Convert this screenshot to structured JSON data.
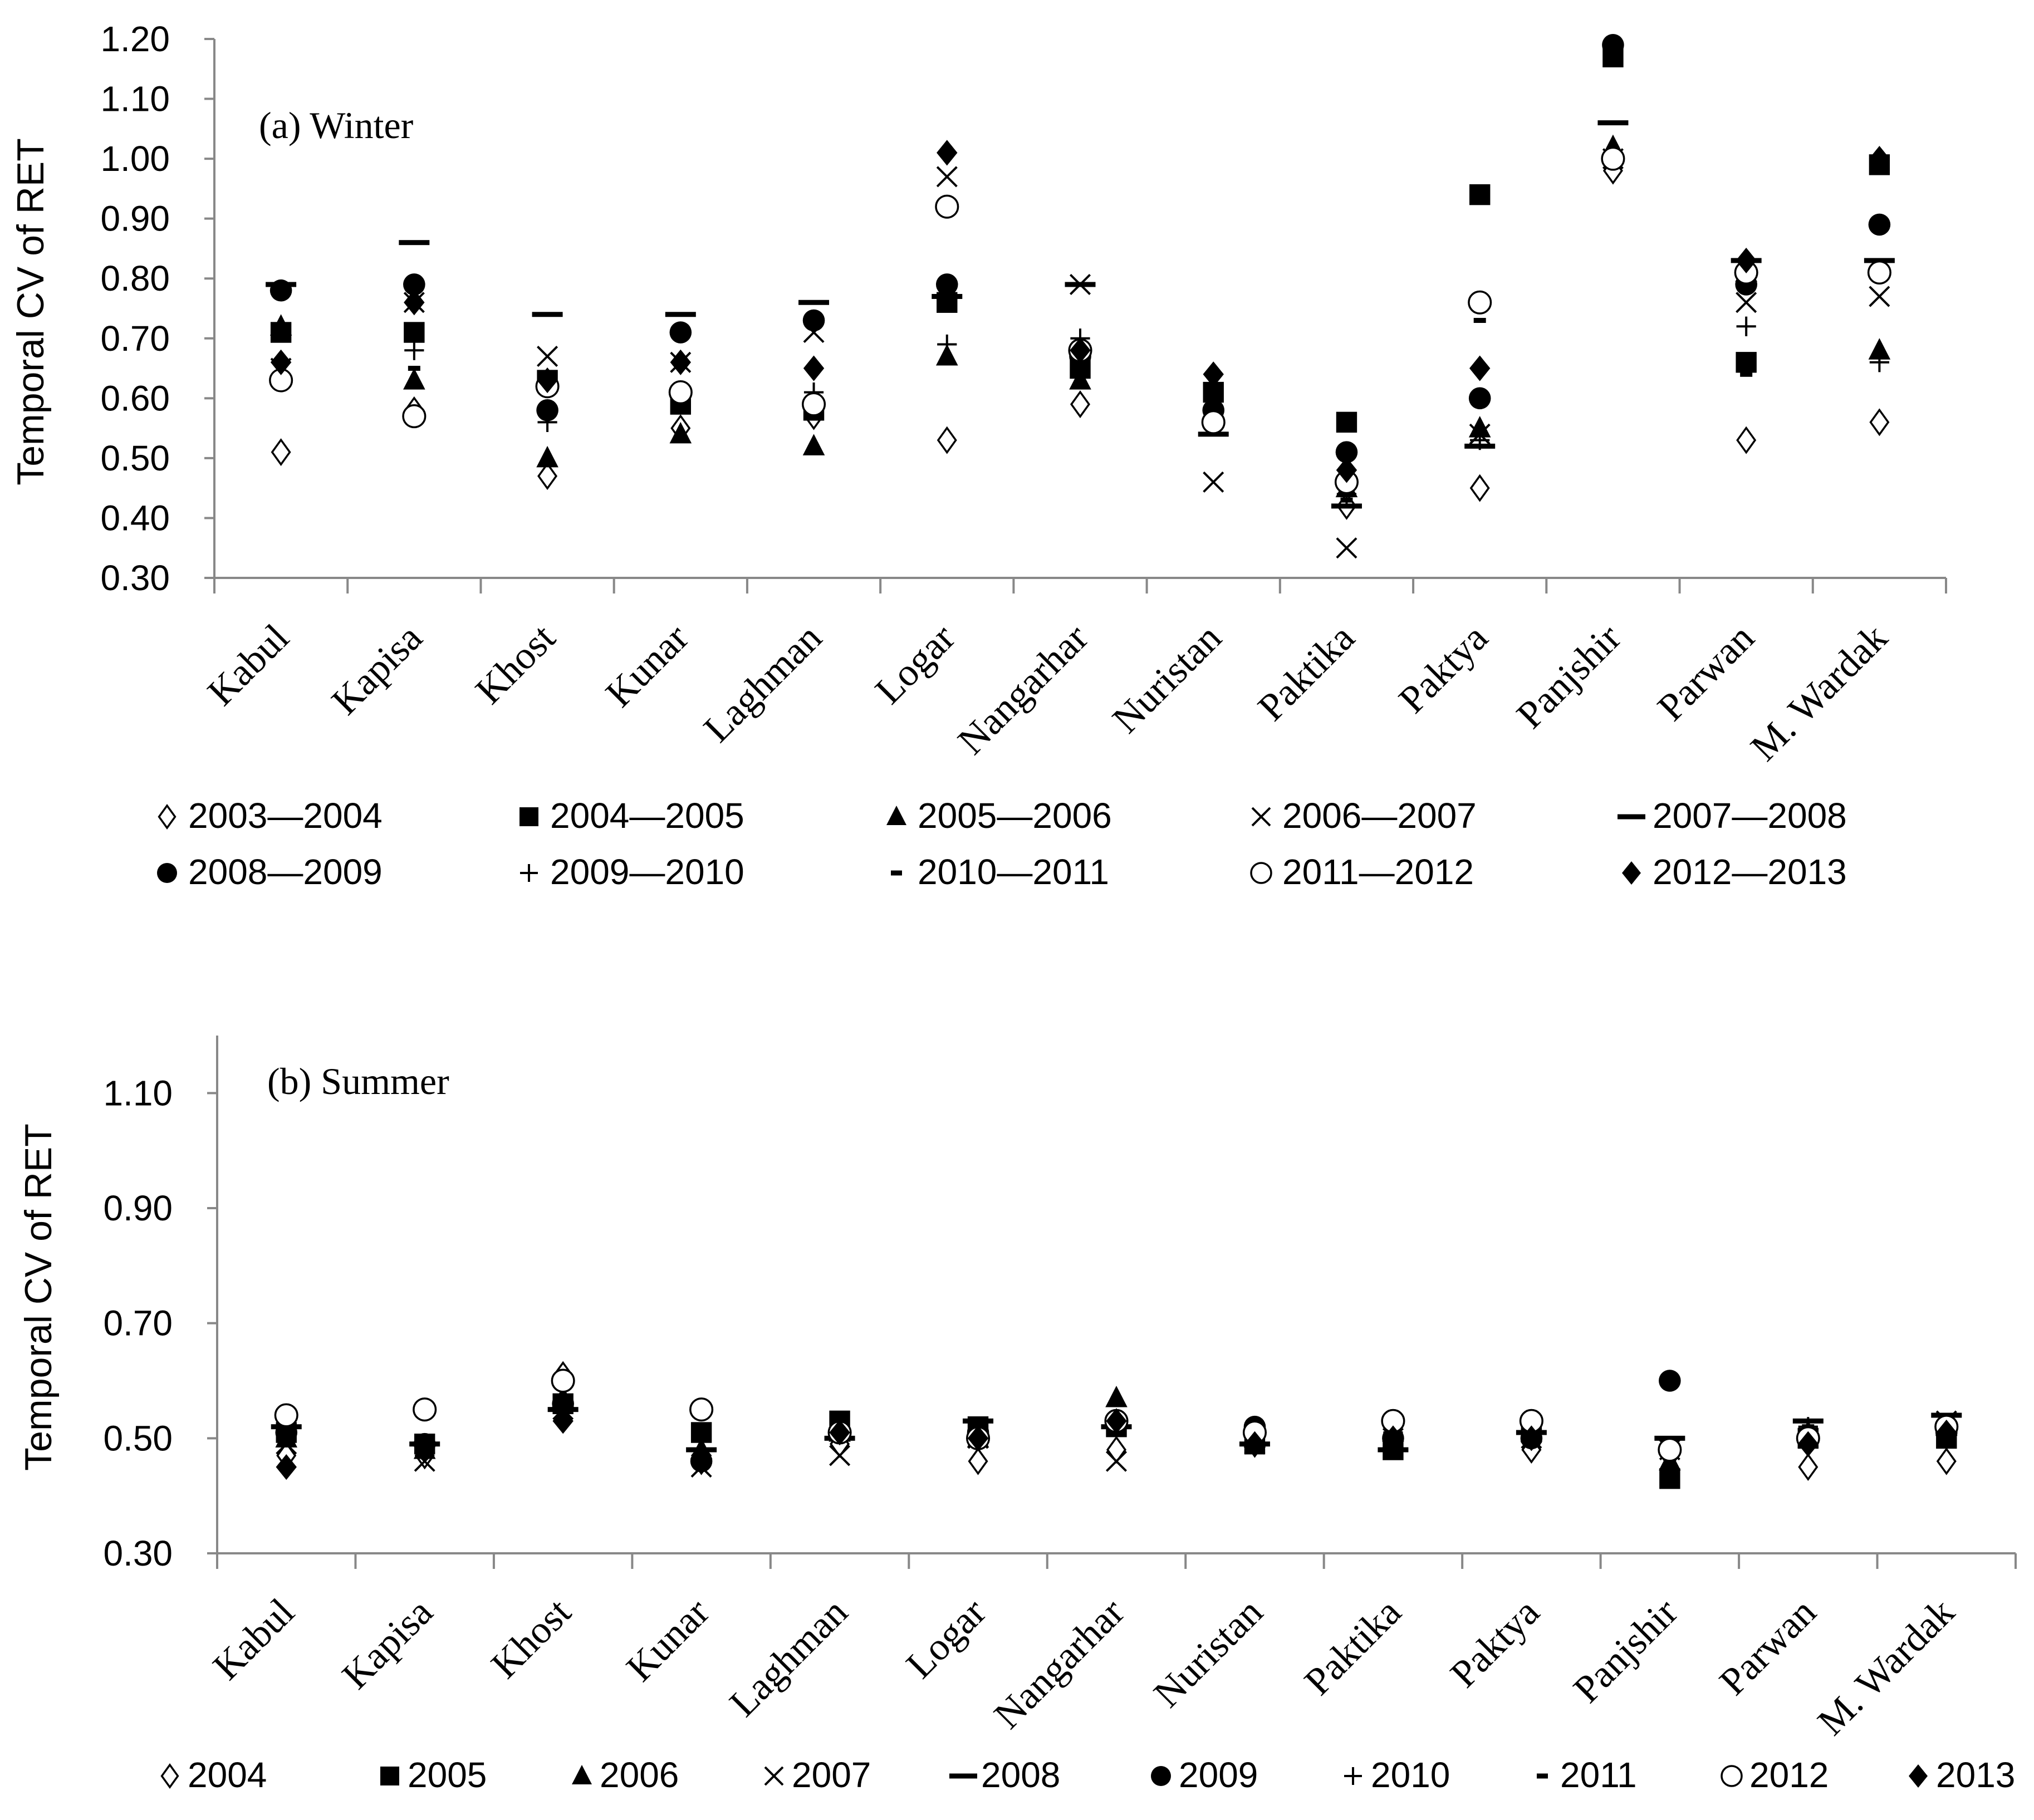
{
  "chart_data": [
    {
      "type": "scatter",
      "title": "(a) Winter",
      "ylabel": "Temporal CV of RET",
      "ylim": [
        0.3,
        1.2
      ],
      "yticks": [
        "0.30",
        "0.40",
        "0.50",
        "0.60",
        "0.70",
        "0.80",
        "0.90",
        "1.00",
        "1.10",
        "1.20"
      ],
      "categories": [
        "Kabul",
        "Kapisa",
        "Khost",
        "Kunar",
        "Laghman",
        "Logar",
        "Nangarhar",
        "Nuristan",
        "Paktika",
        "Paktya",
        "Panjshir",
        "Parwan",
        "M. Wardak"
      ],
      "series": [
        {
          "name": "2003—2004",
          "marker": "diamond-open",
          "values": [
            0.51,
            0.58,
            0.47,
            0.55,
            0.57,
            0.53,
            0.59,
            0.57,
            0.42,
            0.45,
            0.98,
            0.53,
            0.56
          ]
        },
        {
          "name": "2004—2005",
          "marker": "square",
          "values": [
            0.71,
            0.71,
            0.63,
            0.59,
            0.58,
            0.76,
            0.65,
            0.61,
            0.56,
            0.94,
            1.17,
            0.66,
            0.99
          ]
        },
        {
          "name": "2005—2006",
          "marker": "triangle",
          "values": [
            0.72,
            0.63,
            0.5,
            0.54,
            0.52,
            0.67,
            0.63,
            0.58,
            0.45,
            0.55,
            1.02,
            0.81,
            0.68
          ]
        },
        {
          "name": "2006—2007",
          "marker": "x",
          "values": [
            0.65,
            0.76,
            0.67,
            0.66,
            0.71,
            0.97,
            0.79,
            0.46,
            0.35,
            0.54,
            1.0,
            0.76,
            0.77
          ]
        },
        {
          "name": "2007—2008",
          "marker": "dash",
          "values": [
            0.79,
            0.86,
            0.74,
            0.74,
            0.76,
            0.77,
            0.79,
            0.54,
            0.42,
            0.52,
            1.06,
            0.83,
            0.83
          ]
        },
        {
          "name": "2008—2009",
          "marker": "circle",
          "values": [
            0.78,
            0.79,
            0.58,
            0.71,
            0.73,
            0.79,
            0.67,
            0.58,
            0.51,
            0.6,
            1.19,
            0.79,
            0.89
          ]
        },
        {
          "name": "2009—2010",
          "marker": "plus",
          "values": [
            0.72,
            0.68,
            0.56,
            0.61,
            0.61,
            0.69,
            0.7,
            0.58,
            0.44,
            0.53,
            1.01,
            0.72,
            0.66
          ]
        },
        {
          "name": "2010—2011",
          "marker": "short-dash",
          "values": [
            0.66,
            0.65,
            0.61,
            0.61,
            0.59,
            0.76,
            0.66,
            0.56,
            0.43,
            0.73,
            1.18,
            0.64,
            0.82
          ]
        },
        {
          "name": "2011—2012",
          "marker": "circle-open",
          "values": [
            0.63,
            0.57,
            0.62,
            0.61,
            0.59,
            0.92,
            0.68,
            0.56,
            0.46,
            0.76,
            1.0,
            0.81,
            0.81
          ]
        },
        {
          "name": "2012—2013",
          "marker": "diamond",
          "values": [
            0.66,
            0.76,
            0.63,
            0.66,
            0.65,
            1.01,
            0.68,
            0.64,
            0.48,
            0.65,
            1.18,
            0.83,
            1.0
          ]
        }
      ]
    },
    {
      "type": "scatter",
      "title": "(b) Summer",
      "ylabel": "Temporal CV of RET",
      "ylim": [
        0.3,
        1.2
      ],
      "yticks": [
        "0.30",
        "0.50",
        "0.70",
        "0.90",
        "1.10"
      ],
      "categories": [
        "Kabul",
        "Kapisa",
        "Khost",
        "Kunar",
        "Laghman",
        "Logar",
        "Nangarhar",
        "Nuristan",
        "Paktika",
        "Paktya",
        "Panjshir",
        "Parwan",
        "M. Wardak"
      ],
      "series": [
        {
          "name": "2004",
          "marker": "diamond-open",
          "values": [
            0.47,
            0.47,
            0.61,
            0.46,
            0.49,
            0.46,
            0.48,
            0.49,
            0.49,
            0.48,
            0.47,
            0.45,
            0.46
          ]
        },
        {
          "name": "2005",
          "marker": "square",
          "values": [
            0.51,
            0.49,
            0.56,
            0.51,
            0.53,
            0.52,
            0.52,
            0.49,
            0.48,
            0.51,
            0.43,
            0.5,
            0.5
          ]
        },
        {
          "name": "2006",
          "marker": "triangle",
          "values": [
            0.5,
            0.48,
            0.57,
            0.48,
            0.51,
            0.5,
            0.57,
            0.5,
            0.51,
            0.51,
            0.46,
            0.51,
            0.52
          ]
        },
        {
          "name": "2007",
          "marker": "x",
          "values": [
            0.49,
            0.46,
            0.55,
            0.45,
            0.47,
            0.5,
            0.46,
            0.49,
            0.5,
            0.5,
            0.48,
            0.5,
            0.53
          ]
        },
        {
          "name": "2008",
          "marker": "dash",
          "values": [
            0.52,
            0.49,
            0.55,
            0.48,
            0.5,
            0.53,
            0.52,
            0.49,
            0.48,
            0.51,
            0.5,
            0.53,
            0.54
          ]
        },
        {
          "name": "2009",
          "marker": "circle",
          "values": [
            0.51,
            0.49,
            0.56,
            0.46,
            0.51,
            0.51,
            0.53,
            0.52,
            0.5,
            0.5,
            0.6,
            0.5,
            0.51
          ]
        },
        {
          "name": "2010",
          "marker": "plus",
          "values": [
            0.51,
            0.49,
            0.57,
            0.55,
            0.51,
            0.51,
            0.53,
            0.5,
            0.51,
            0.51,
            0.47,
            0.52,
            0.51
          ]
        },
        {
          "name": "2011",
          "marker": "short-dash",
          "values": [
            0.51,
            0.49,
            0.56,
            0.5,
            0.51,
            0.52,
            0.52,
            0.5,
            0.5,
            0.51,
            0.47,
            0.52,
            0.53
          ]
        },
        {
          "name": "2012",
          "marker": "circle-open",
          "values": [
            0.54,
            0.55,
            0.6,
            0.55,
            0.51,
            0.5,
            0.53,
            0.51,
            0.53,
            0.53,
            0.48,
            0.5,
            0.52
          ]
        },
        {
          "name": "2013",
          "marker": "diamond",
          "values": [
            0.45,
            0.48,
            0.53,
            0.47,
            0.51,
            0.5,
            0.53,
            0.49,
            0.5,
            0.5,
            0.44,
            0.49,
            0.51
          ]
        }
      ]
    }
  ]
}
